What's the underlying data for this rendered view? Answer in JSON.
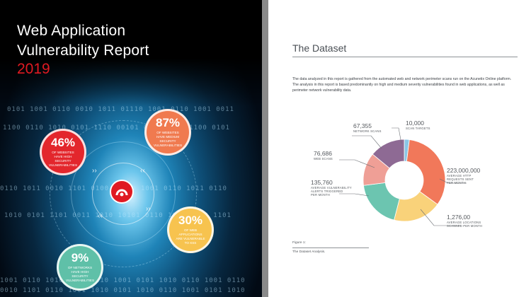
{
  "cover": {
    "title_line1": "Web Application",
    "title_line2": "Vulnerability Report",
    "year": "2019",
    "accent_color": "#e01a22",
    "stats": [
      {
        "value": "46%",
        "text": "of websites have high security vulnerabilities",
        "color": "#e3262c"
      },
      {
        "value": "87%",
        "text": "of websites have medium security vulnerabilities",
        "color": "#f07a4f"
      },
      {
        "value": "30%",
        "text": "of web applications are vulnerable to XSS",
        "color": "#f7c34f"
      },
      {
        "value": "9%",
        "text": "of networks have high security vulnerabilities",
        "color": "#5fc0a8"
      }
    ],
    "logo_icon": "acunetix-logo-icon"
  },
  "page": {
    "title": "The Dataset",
    "paragraph": "The data analyzed in this report is gathered from the automated web and network perimeter scans run on the Acunetix Online platform. The analysis in this report is based predominantly on high and medium severity vulnerabilities found in web applications, as well as perimeter network vulnerability data.",
    "labels": {
      "scan_targets": {
        "value": "10,000",
        "desc": "Scan targets"
      },
      "network_scans": {
        "value": "67,355",
        "desc": "Network scans"
      },
      "web_scans": {
        "value": "76,686",
        "desc": "Web scans"
      },
      "alerts": {
        "value": "135,760",
        "desc1": "Average vulnerability",
        "desc2": "alerts triggered",
        "desc3": "per month"
      },
      "requests": {
        "value": "223,000,000",
        "desc1": "Average HTTP",
        "desc2": "requests sent",
        "desc3": "per month"
      },
      "locations": {
        "value": "1,276,00",
        "desc1": "Average locations",
        "desc2": "scanned per month"
      }
    },
    "figure_label": "Figure 1:",
    "figure_caption": "The Dataset Analysis."
  },
  "chart_data": {
    "type": "pie",
    "style": "donut",
    "segments": [
      {
        "label": "Scan targets",
        "display_value": "10,000",
        "share": 0.02,
        "color": "#8ac6e6"
      },
      {
        "label": "Average HTTP requests sent per month",
        "display_value": "223,000,000",
        "share": 0.33,
        "color": "#f1785a"
      },
      {
        "label": "Average locations scanned per month",
        "display_value": "1,276,00",
        "share": 0.19,
        "color": "#f9d27a"
      },
      {
        "label": "Average vulnerability alerts triggered per month",
        "display_value": "135,760",
        "share": 0.19,
        "color": "#6cc5b0"
      },
      {
        "label": "Web scans",
        "display_value": "76,686",
        "share": 0.13,
        "color": "#ef9f96"
      },
      {
        "label": "Network scans",
        "display_value": "67,355",
        "share": 0.14,
        "color": "#8e6a94"
      }
    ]
  }
}
